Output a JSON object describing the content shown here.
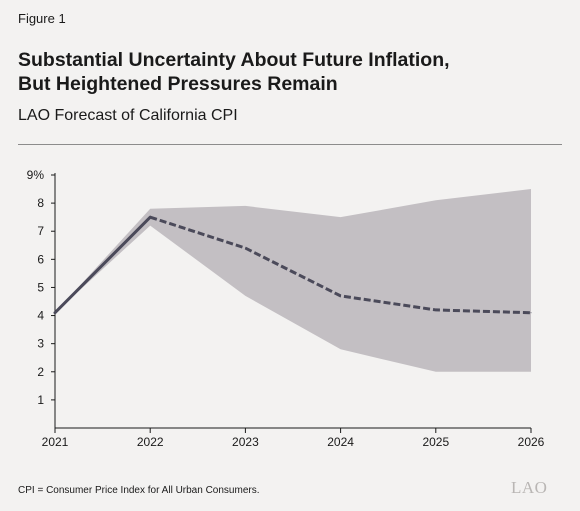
{
  "figure_label": "Figure 1",
  "title_line1": "Substantial Uncertainty About Future Inflation,",
  "title_line2": "But Heightened Pressures Remain",
  "subtitle": "LAO Forecast of California CPI",
  "footnote": "CPI = Consumer Price Index for All Urban Consumers.",
  "logo_text": "LAO",
  "colors": {
    "band": "#c3bfc3",
    "line": "#4b4a5a",
    "axis": "#1a1a1a"
  },
  "chart_data": {
    "type": "line",
    "title": "",
    "xlabel": "",
    "ylabel": "",
    "x": [
      2021,
      2022,
      2023,
      2024,
      2025,
      2026
    ],
    "xlim": [
      2021,
      2026
    ],
    "ylim": [
      0,
      9
    ],
    "y_ticks": [
      1,
      2,
      3,
      4,
      5,
      6,
      7,
      8,
      9
    ],
    "y_tick_labels": [
      "1",
      "2",
      "3",
      "4",
      "5",
      "6",
      "7",
      "8",
      "9%"
    ],
    "x_tick_labels": [
      "2021",
      "2022",
      "2023",
      "2024",
      "2025",
      "2026"
    ],
    "grid": false,
    "legend": "none",
    "series": [
      {
        "values": [
          4.1,
          7.5,
          6.4,
          4.7,
          4.2,
          4.1
        ],
        "style": "dashed"
      }
    ],
    "band": {
      "upper": [
        4.1,
        7.8,
        7.9,
        7.5,
        8.1,
        8.5
      ],
      "lower": [
        4.1,
        7.2,
        4.7,
        2.8,
        2.0,
        2.0
      ]
    }
  }
}
